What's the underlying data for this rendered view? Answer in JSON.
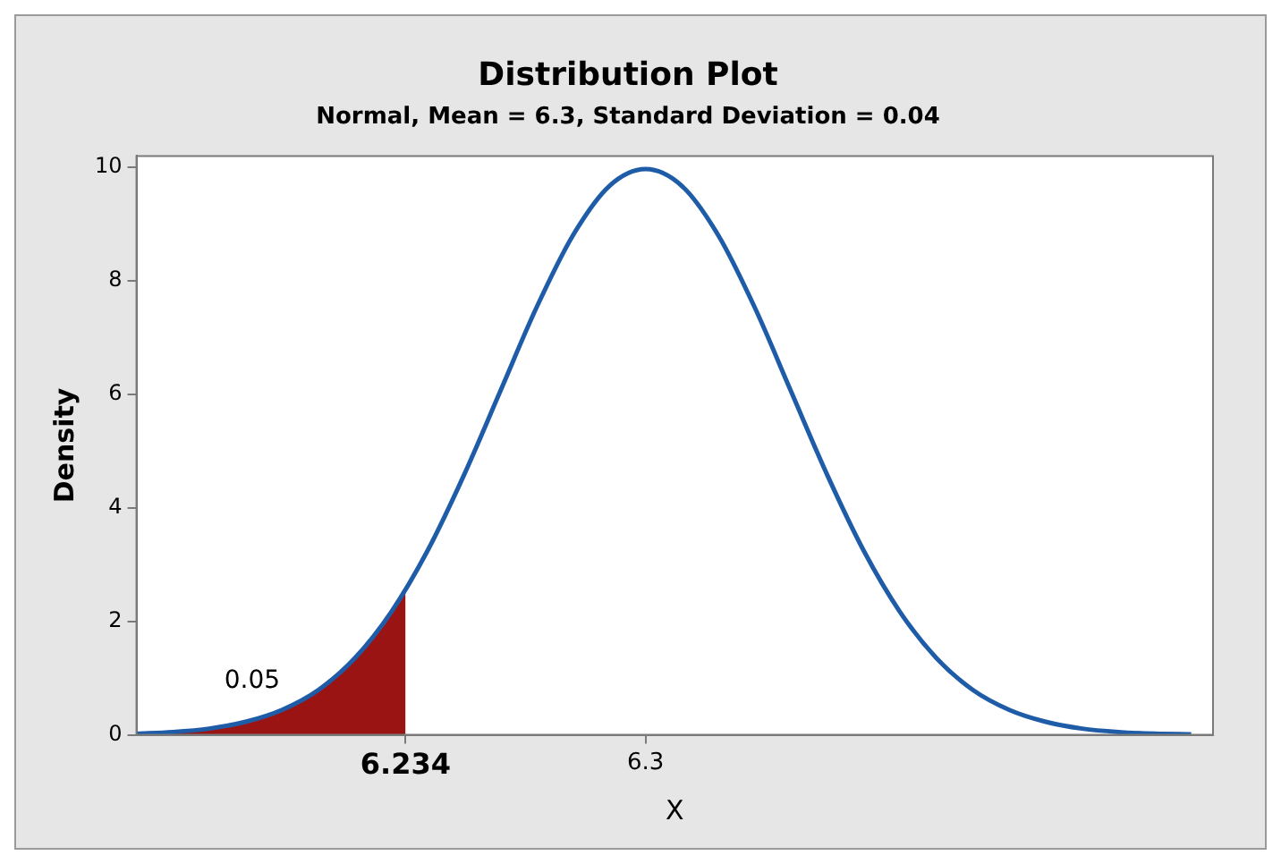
{
  "chart_data": {
    "type": "line",
    "title": "Distribution Plot",
    "subtitle": "Normal, Mean = 6.3, Standard Deviation = 0.04",
    "xlabel": "X",
    "ylabel": "Density",
    "series": [
      {
        "type": "area",
        "color": "#9b1414",
        "x": [
          6.16,
          6.17,
          6.18,
          6.19,
          6.2,
          6.21,
          6.22,
          6.23,
          6.234
        ],
        "values": [
          0.02,
          0.05,
          0.11,
          0.23,
          0.44,
          0.79,
          1.35,
          2.16,
          2.56
        ]
      },
      {
        "type": "line",
        "color": "#1f5ca8",
        "x": [
          6.16,
          6.17,
          6.18,
          6.19,
          6.2,
          6.21,
          6.22,
          6.23,
          6.24,
          6.25,
          6.26,
          6.27,
          6.28,
          6.29,
          6.3,
          6.31,
          6.32,
          6.33,
          6.34,
          6.35,
          6.36,
          6.37,
          6.38,
          6.39,
          6.4,
          6.41,
          6.42,
          6.43,
          6.44,
          6.45
        ],
        "values": [
          0.02,
          0.05,
          0.11,
          0.23,
          0.44,
          0.79,
          1.35,
          2.16,
          3.24,
          4.57,
          6.05,
          7.53,
          8.8,
          9.67,
          9.97,
          9.67,
          8.8,
          7.53,
          6.05,
          4.57,
          3.24,
          2.16,
          1.35,
          0.79,
          0.44,
          0.23,
          0.11,
          0.05,
          0.02,
          0.01
        ]
      }
    ],
    "annotations": [
      "0.05"
    ],
    "xlim": [
      6.16,
      6.456
    ],
    "xticks": [
      6.234,
      6.3
    ],
    "ylim": [
      0,
      10.2
    ],
    "yticks": [
      0,
      2,
      4,
      6,
      8,
      10
    ],
    "grid": false,
    "legend": false,
    "marker": "none",
    "line_style": "solid"
  }
}
